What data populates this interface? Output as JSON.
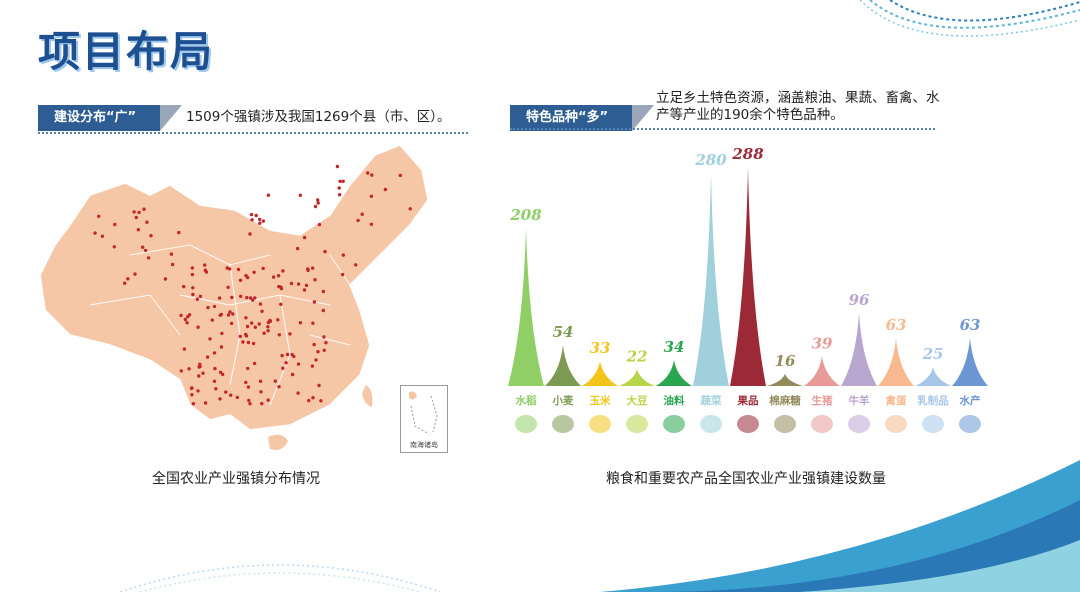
{
  "page": {
    "title": "项目布局"
  },
  "left": {
    "tag": "建设分布“广”",
    "description": "1509个强镇涉及我国1269个县（市、区）。",
    "caption": "全国农业产业强镇分布情况",
    "inset_label": "南海诸岛"
  },
  "right": {
    "tag": "特色品种“多”",
    "description_line1": "立足乡土特色资源，涵盖粮油、果蔬、畜禽、水",
    "description_line2": "产等产业的190余个特色品种。",
    "caption": "粮食和重要农产品全国农业产业强镇建设数量"
  },
  "chart_data": {
    "type": "bar",
    "title": "粮食和重要农产品全国农业产业强镇建设数量",
    "categories": [
      "水稻",
      "小麦",
      "玉米",
      "大豆",
      "油料",
      "蔬菜",
      "果品",
      "棉麻糖",
      "生猪",
      "牛羊",
      "禽蛋",
      "乳制品",
      "水产"
    ],
    "values": [
      208,
      54,
      33,
      22,
      34,
      280,
      288,
      16,
      39,
      96,
      63,
      25,
      63
    ],
    "colors": [
      "#8fcf66",
      "#7c9a52",
      "#f3c51a",
      "#b8d54a",
      "#2aa650",
      "#9fd0dc",
      "#9b2a36",
      "#948b5c",
      "#e89a98",
      "#b9a6cf",
      "#f7b98d",
      "#a7c7e8",
      "#6c97d3"
    ],
    "ylim": [
      0,
      300
    ],
    "xlabel": "",
    "ylabel": "",
    "grid": false,
    "legend": "none"
  }
}
